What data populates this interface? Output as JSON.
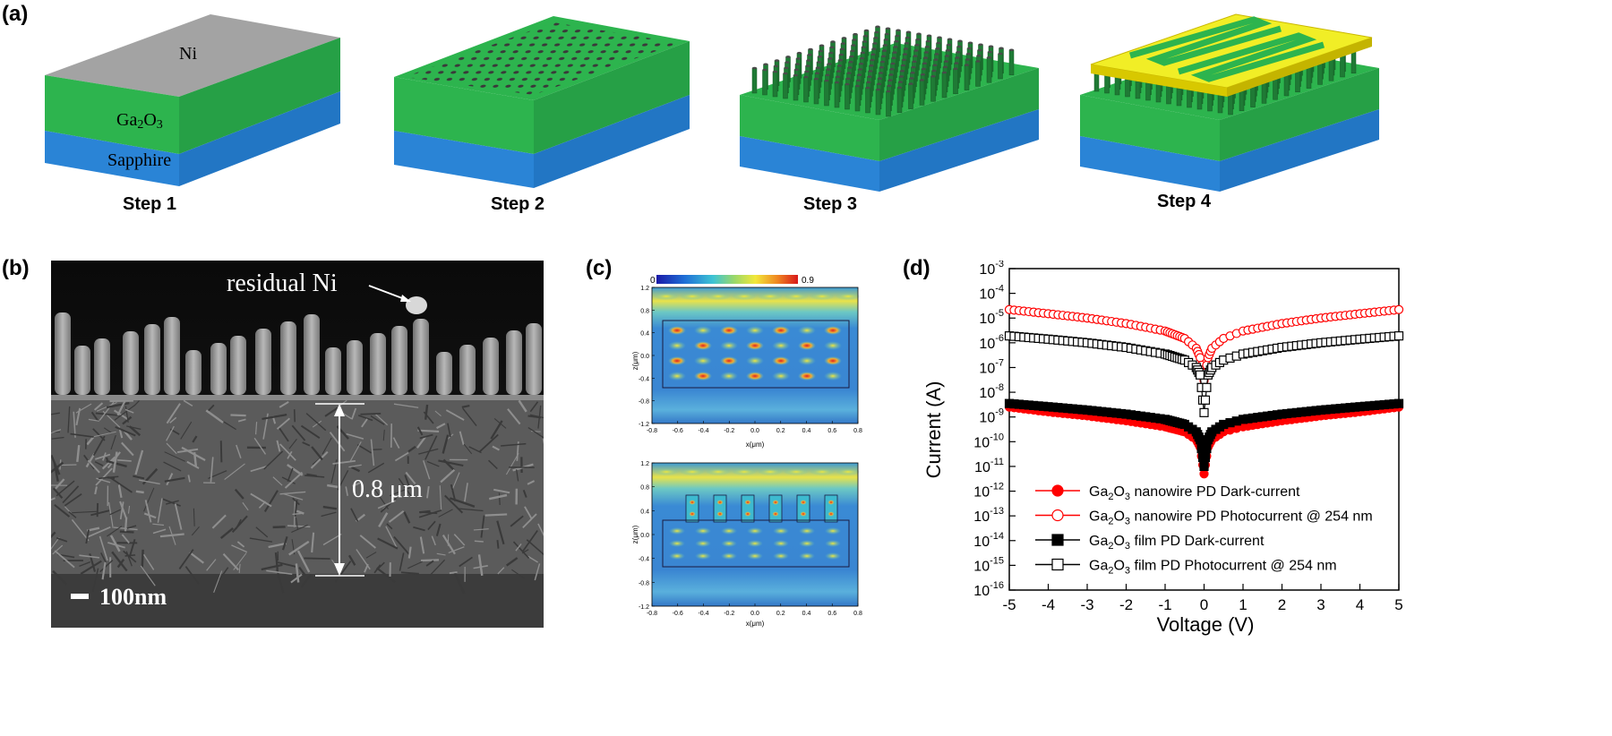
{
  "panel_labels": {
    "a": "(a)",
    "b": "(b)",
    "c": "(c)",
    "d": "(d)"
  },
  "schematic": {
    "layers": {
      "top": "Ni",
      "middle": "Ga2O3",
      "bottom": "Sapphire"
    },
    "steps": [
      "Step 1",
      "Step 2",
      "Step 3",
      "Step 4"
    ],
    "colors": {
      "ni": "#a3a3a3",
      "ga2o3": "#2db44e",
      "sapphire": "#2a84d6",
      "electrode": "#f1ee26"
    }
  },
  "sem": {
    "annotation": "residual Ni",
    "thickness": "0.8 μm",
    "scale_bar": "100nm"
  },
  "chart_data": [
    {
      "type": "heatmap",
      "colorbar": {
        "min": "0",
        "max": "0.9"
      },
      "xlabel": "x(μm)",
      "ylabel": "z(μm)",
      "xticks": [
        "-0.8",
        "-0.6",
        "-0.4",
        "-0.2",
        "0.0",
        "0.2",
        "0.4",
        "0.6",
        "0.8"
      ],
      "yticks": [
        "1.2",
        "0.8",
        "0.4",
        "0.0",
        "-0.4",
        "-0.8",
        "-1.2"
      ],
      "xlim": [
        -0.8,
        0.8
      ],
      "ylim": [
        -1.2,
        1.2
      ]
    },
    {
      "type": "heatmap",
      "xlabel": "x(μm)",
      "ylabel": "z(μm)",
      "xticks": [
        "-0.8",
        "-0.6",
        "-0.4",
        "-0.2",
        "0.0",
        "0.2",
        "0.4",
        "0.6",
        "0.8"
      ],
      "yticks": [
        "1.2",
        "0.8",
        "0.4",
        "0.0",
        "-0.4",
        "-0.8",
        "-1.2"
      ],
      "xlim": [
        -0.8,
        0.8
      ],
      "ylim": [
        -1.2,
        1.2
      ]
    },
    {
      "type": "scatter",
      "xlabel": "Voltage (V)",
      "ylabel": "Current (A)",
      "xlim": [
        -5,
        5
      ],
      "ylim_exp": [
        -16,
        -3
      ],
      "yscale": "log",
      "xticks": [
        "-5",
        "-4",
        "-3",
        "-2",
        "-1",
        "0",
        "1",
        "2",
        "3",
        "4",
        "5"
      ],
      "ytick_exps": [
        "-3",
        "-4",
        "-5",
        "-6",
        "-7",
        "-8",
        "-9",
        "-10",
        "-11",
        "-12",
        "-13",
        "-14",
        "-15",
        "-16"
      ],
      "legend_position": "bottom-left",
      "series": [
        {
          "name_pre": "Ga",
          "sub1": "2",
          "mid": "O",
          "sub2": "3",
          "name_post": " nanowire PD Dark-current",
          "color": "#ff0000",
          "marker": "filled-circle",
          "x": [
            -5,
            -4,
            -3,
            -2,
            -1,
            -0.5,
            -0.2,
            -0.1,
            0,
            0.1,
            0.2,
            0.5,
            1,
            2,
            3,
            4,
            5
          ],
          "y": [
            2.5e-09,
            1.6e-09,
            1.1e-09,
            7e-10,
            4e-10,
            2.5e-10,
            1.2e-10,
            6e-11,
            5e-12,
            6e-11,
            1.2e-10,
            2.5e-10,
            4e-10,
            7e-10,
            1.1e-09,
            1.6e-09,
            2.5e-09
          ]
        },
        {
          "name_pre": "Ga",
          "sub1": "2",
          "mid": "O",
          "sub2": "3",
          "name_post": " nanowire PD Photocurrent @ 254 nm",
          "color": "#ff0000",
          "marker": "open-circle",
          "x": [
            -5,
            -4,
            -3,
            -2,
            -1,
            -0.5,
            -0.2,
            -0.1,
            0,
            0.1,
            0.2,
            0.5,
            1,
            2,
            3,
            4,
            5
          ],
          "y": [
            2.2e-05,
            1.5e-05,
            1e-05,
            6e-06,
            3e-06,
            1.5e-06,
            6e-07,
            2.5e-07,
            3e-08,
            2.5e-07,
            6e-07,
            1.5e-06,
            3e-06,
            6e-06,
            1e-05,
            1.5e-05,
            2.2e-05
          ]
        },
        {
          "name_pre": "Ga",
          "sub1": "2",
          "mid": "O",
          "sub2": "3",
          "name_post": " film PD Dark-current",
          "color": "#000000",
          "marker": "filled-square",
          "x": [
            -5,
            -4,
            -3,
            -2,
            -1,
            -0.5,
            -0.2,
            -0.1,
            0,
            0.1,
            0.2,
            0.5,
            1,
            2,
            3,
            4,
            5
          ],
          "y": [
            3.5e-09,
            2.6e-09,
            1.9e-09,
            1.3e-09,
            8e-10,
            5e-10,
            2.5e-10,
            1.2e-10,
            1e-11,
            1.2e-10,
            2.5e-10,
            5e-10,
            8e-10,
            1.3e-09,
            1.9e-09,
            2.6e-09,
            3.5e-09
          ]
        },
        {
          "name_pre": "Ga",
          "sub1": "2",
          "mid": "O",
          "sub2": "3",
          "name_post": " film PD Photocurrent @ 254 nm",
          "color": "#000000",
          "marker": "open-square",
          "x": [
            -5,
            -4,
            -3,
            -2,
            -1,
            -0.5,
            -0.2,
            -0.1,
            0,
            0.1,
            0.2,
            0.5,
            1,
            2,
            3,
            4,
            5
          ],
          "y": [
            1.9e-06,
            1.4e-06,
            1e-06,
            6.5e-07,
            3.5e-07,
            2e-07,
            1e-07,
            5e-08,
            1.5e-09,
            5e-08,
            1e-07,
            2e-07,
            3.5e-07,
            6.5e-07,
            1e-06,
            1.4e-06,
            1.9e-06
          ]
        }
      ]
    }
  ]
}
